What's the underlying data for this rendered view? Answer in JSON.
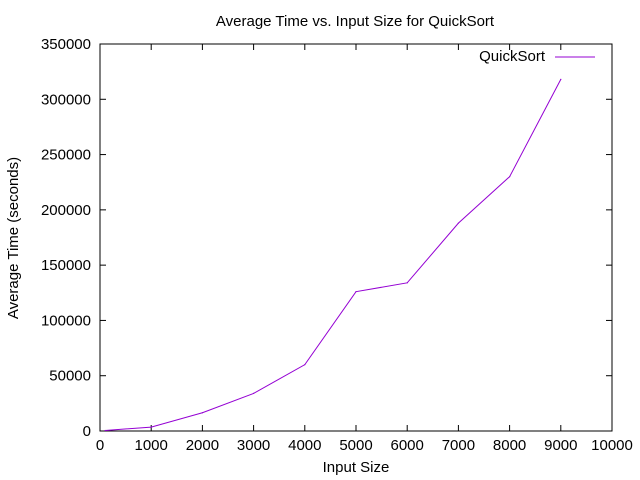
{
  "chart_data": {
    "type": "line",
    "title": "Average Time vs. Input Size for QuickSort",
    "xlabel": "Input Size",
    "ylabel": "Average Time (seconds)",
    "xlim": [
      0,
      10000
    ],
    "ylim": [
      0,
      350000
    ],
    "xticks": [
      "0",
      "1000",
      "2000",
      "3000",
      "4000",
      "5000",
      "6000",
      "7000",
      "8000",
      "9000",
      "10000"
    ],
    "yticks": [
      "0",
      "50000",
      "100000",
      "150000",
      "200000",
      "250000",
      "300000",
      "350000"
    ],
    "grid": false,
    "legend_position": "top-right",
    "series": [
      {
        "name": "QuickSort",
        "color": "#9400d3",
        "x": [
          100,
          1000,
          2000,
          3000,
          4000,
          5000,
          6000,
          7000,
          8000,
          9000
        ],
        "values": [
          500,
          3500,
          16500,
          34000,
          60000,
          126000,
          134000,
          188000,
          230000,
          318000
        ]
      }
    ]
  }
}
